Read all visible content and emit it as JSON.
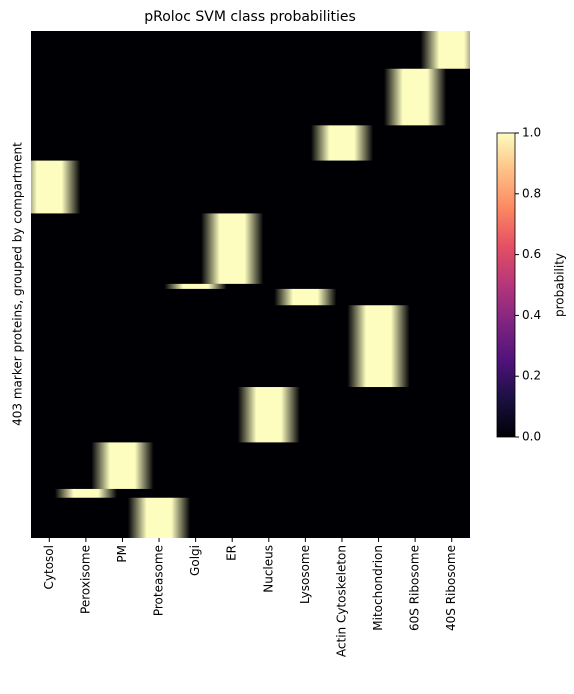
{
  "chart_data": {
    "type": "heatmap",
    "title": "pRoloc SVM class probabilities",
    "ylabel": "403 marker proteins, grouped by compartment",
    "categories": [
      "Cytosol",
      "Peroxisome",
      "PM",
      "Proteasome",
      "Golgi",
      "ER",
      "Nucleus",
      "Lysosome",
      "Actin Cytoskeleton",
      "Mitochondrion",
      "60S Ribosome",
      "40S Ribosome"
    ],
    "ylim": [
      403,
      0
    ],
    "colormap": "magma",
    "colorbar_label": "probability",
    "clim": [
      0,
      1
    ],
    "cticks": [
      {
        "value": 0,
        "label": "0.0"
      },
      0.2,
      0.4,
      0.6,
      0.8,
      {
        "value": 1,
        "label": "1.0"
      }
    ],
    "blocks": [
      {
        "column": 11,
        "row_start": 0,
        "row_end": 30,
        "value": 1
      },
      {
        "column": 10,
        "row_start": 30,
        "row_end": 75,
        "value": 1
      },
      {
        "column": 8,
        "row_start": 75,
        "row_end": 103,
        "value": 1
      },
      {
        "column": 0,
        "row_start": 103,
        "row_end": 145,
        "value": 1
      },
      {
        "column": 5,
        "row_start": 145,
        "row_end": 201,
        "value": 1
      },
      {
        "column": 4,
        "row_start": 201,
        "row_end": 205,
        "value": 1
      },
      {
        "column": 7,
        "row_start": 205,
        "row_end": 218,
        "value": 1
      },
      {
        "column": 9,
        "row_start": 218,
        "row_end": 283,
        "value": 1
      },
      {
        "column": 6,
        "row_start": 283,
        "row_end": 327,
        "value": 1
      },
      {
        "column": 2,
        "row_start": 327,
        "row_end": 364,
        "value": 1
      },
      {
        "column": 1,
        "row_start": 364,
        "row_end": 371,
        "value": 1
      },
      {
        "column": 3,
        "row_start": 371,
        "row_end": 403,
        "value": 1
      }
    ]
  }
}
